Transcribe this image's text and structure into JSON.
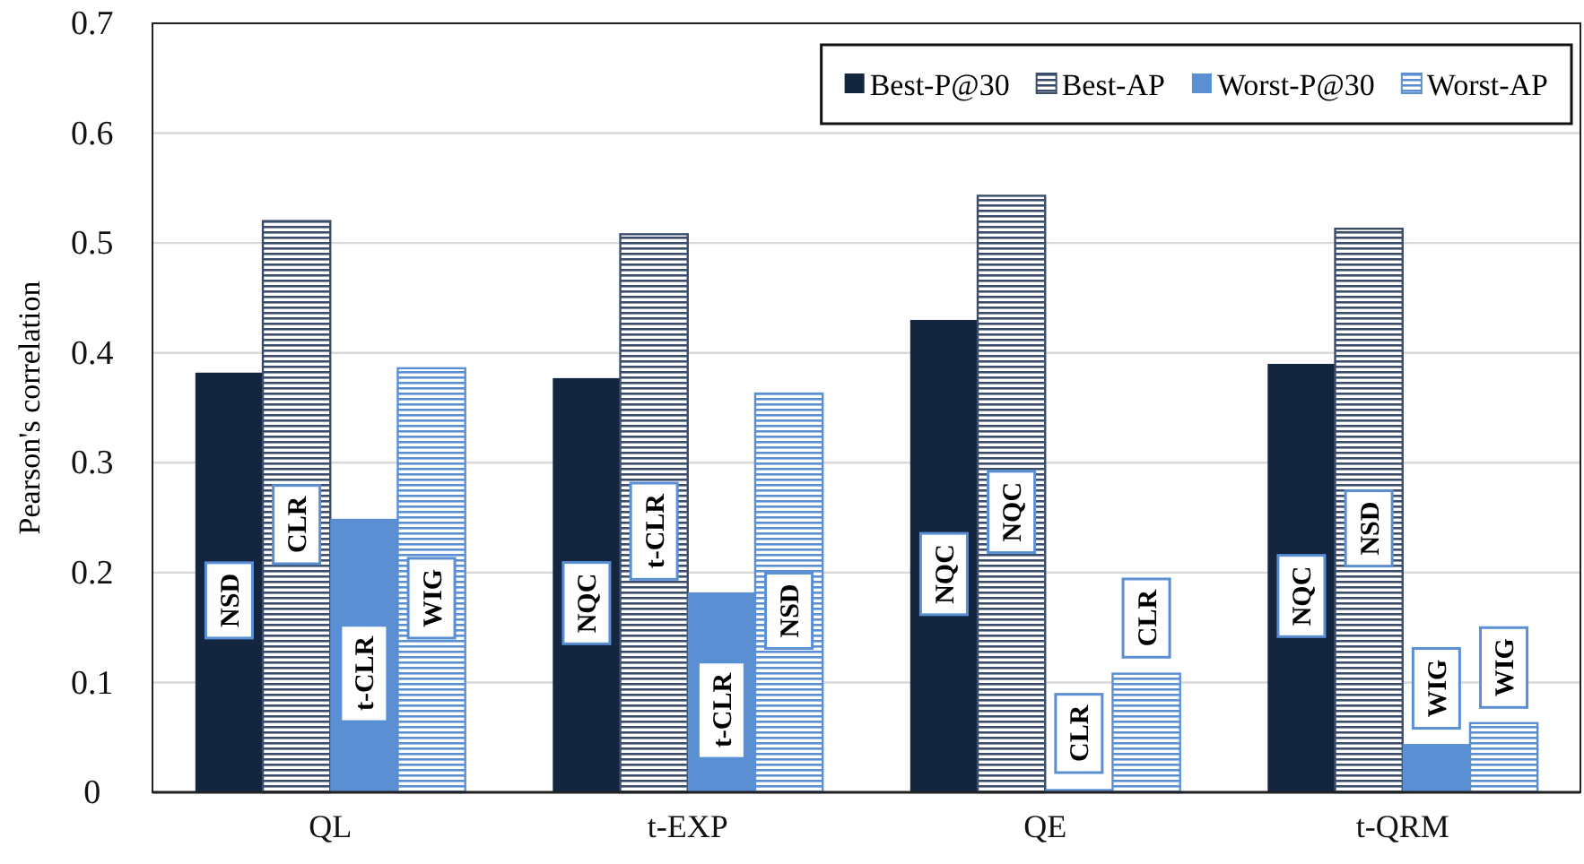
{
  "chart_data": {
    "type": "bar",
    "ylabel": "Pearson's correlation",
    "categories": [
      "QL",
      "t-EXP",
      "QE",
      "t-QRM"
    ],
    "series": [
      {
        "name": "Best-P@30",
        "color": "#14253f",
        "values": [
          0.382,
          0.377,
          0.43,
          0.39
        ],
        "value_labels": [
          "NSD",
          "NQC",
          "NQC",
          "NQC"
        ]
      },
      {
        "name": "Best-AP",
        "color": "#3b4d6b",
        "values": [
          0.52,
          0.508,
          0.543,
          0.513
        ],
        "value_labels": [
          "CLR",
          "t-CLR",
          "NQC",
          "NSD"
        ]
      },
      {
        "name": "Worst-P@30",
        "color": "#5a8fd4",
        "values": [
          0.249,
          0.182,
          0.003,
          0.044
        ],
        "value_labels": [
          "t-CLR",
          "t-CLR",
          "CLR",
          "WIG"
        ]
      },
      {
        "name": "Worst-AP",
        "color": "#5a8fd4",
        "values": [
          0.386,
          0.363,
          0.108,
          0.063
        ],
        "value_labels": [
          "WIG",
          "NSD",
          "CLR",
          "WIG"
        ]
      }
    ],
    "ylim": [
      0,
      0.7
    ],
    "yticks": [
      0,
      0.1,
      0.2,
      0.3,
      0.4,
      0.5,
      0.6,
      0.7
    ],
    "grid": "y",
    "legend": "top right"
  }
}
